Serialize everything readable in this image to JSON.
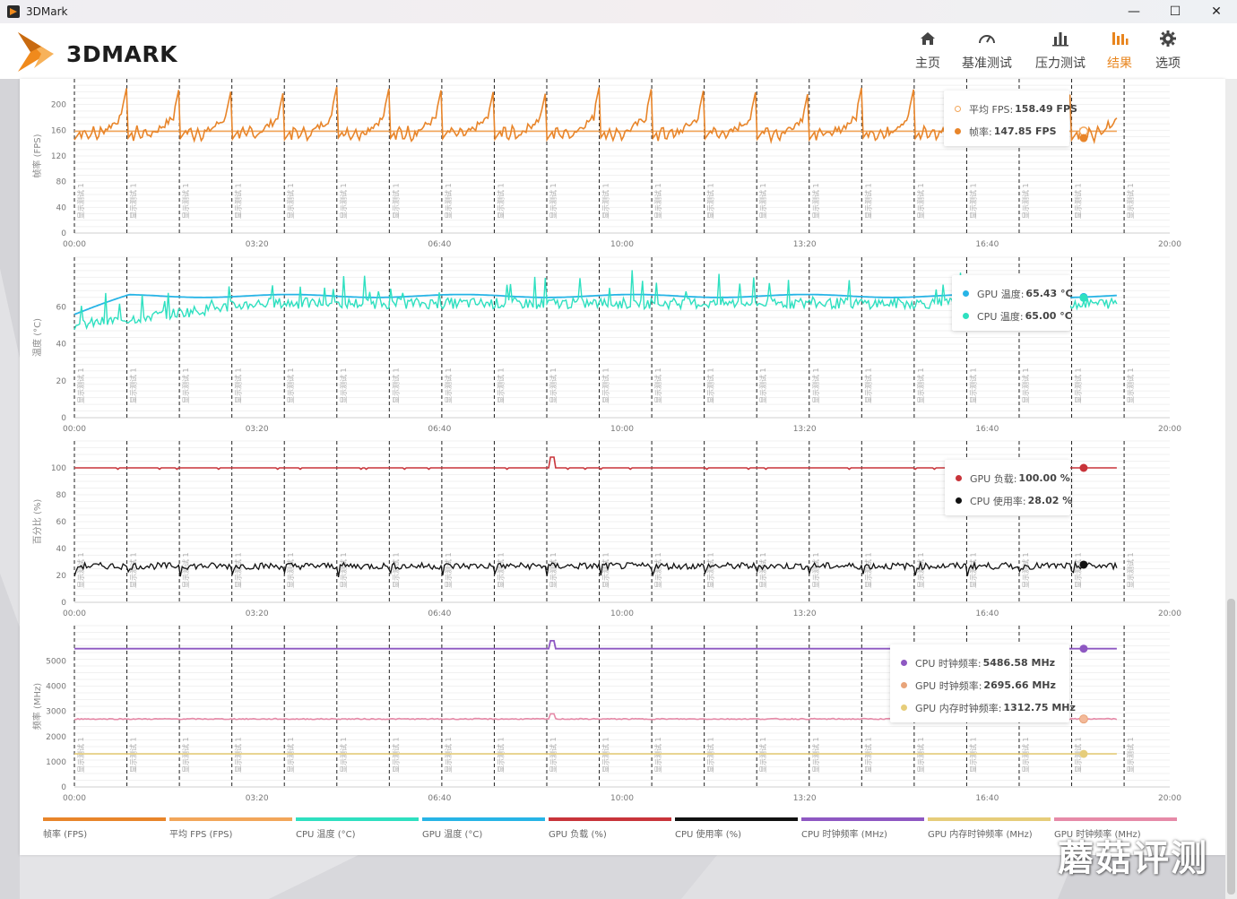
{
  "window": {
    "title": "3DMark",
    "controls": {
      "minimize": "—",
      "maximize": "☐",
      "close": "✕"
    }
  },
  "header": {
    "logo_text": "3DMARK",
    "nav": [
      {
        "label": "主页",
        "icon": "home-icon",
        "active": false
      },
      {
        "label": "基准测试",
        "icon": "gauge-icon",
        "active": false
      },
      {
        "label": "压力测试",
        "icon": "bar-chart-icon",
        "active": false
      },
      {
        "label": "结果",
        "icon": "results-icon",
        "active": true
      },
      {
        "label": "选项",
        "icon": "gear-icon",
        "active": false
      }
    ]
  },
  "colors": {
    "accent": "#e8851e",
    "fps": "#e8852a",
    "avg_fps": "#f2a65a",
    "cpu_temp": "#2ee0c0",
    "gpu_temp": "#27b4e6",
    "gpu_load": "#c8343a",
    "cpu_usage": "#111111",
    "cpu_clock": "#8e58c2",
    "gpu_mem_clock": "#e6cd7a",
    "gpu_clock": "#e68aa8"
  },
  "x_axis_ticks": [
    "00:00",
    "03:20",
    "06:40",
    "10:00",
    "13:20",
    "16:40",
    "20:00"
  ],
  "marker_label": "显示测试 1",
  "chart_data": [
    {
      "type": "line",
      "ylabel": "帧率 (FPS)",
      "yticks": [
        "0",
        "40",
        "80",
        "120",
        "160",
        "200"
      ],
      "ylim": [
        0,
        240
      ],
      "xlim_seconds": [
        0,
        1200
      ],
      "series": [
        {
          "name": "平均 FPS",
          "value": 158.49,
          "shape": "flat"
        },
        {
          "name": "帧率",
          "value": 147.85,
          "shape": "sawtooth",
          "min": 135,
          "max": 230,
          "period_seconds": 57.5
        }
      ],
      "legend": [
        {
          "label": "平均 FPS",
          "value": "158.49 FPS",
          "color": "#f2a65a",
          "hollow": true
        },
        {
          "label": "帧率",
          "value": "147.85 FPS",
          "color": "#e8852a",
          "hollow": false
        }
      ]
    },
    {
      "type": "line",
      "ylabel": "温度 (°C)",
      "yticks": [
        "0",
        "20",
        "40",
        "60"
      ],
      "ylim": [
        0,
        87
      ],
      "xlim_seconds": [
        0,
        1200
      ],
      "series": [
        {
          "name": "GPU 温度",
          "value": 65.43,
          "start": 56,
          "steady": 66
        },
        {
          "name": "CPU 温度",
          "value": 65.0,
          "start": 50,
          "steady": 62,
          "max": 80
        }
      ],
      "legend": [
        {
          "label": "GPU 温度",
          "value": "65.43 °C",
          "color": "#27b4e6",
          "hollow": false
        },
        {
          "label": "CPU 温度",
          "value": "65.00 °C",
          "color": "#2ee0c0",
          "hollow": false
        }
      ]
    },
    {
      "type": "line",
      "ylabel": "百分比 (%)",
      "yticks": [
        "0",
        "20",
        "40",
        "60",
        "80",
        "100"
      ],
      "ylim": [
        0,
        120
      ],
      "xlim_seconds": [
        0,
        1200
      ],
      "series": [
        {
          "name": "GPU 负载",
          "value": 100.0,
          "steady": 100
        },
        {
          "name": "CPU 使用率",
          "value": 28.02,
          "steady": 27
        }
      ],
      "legend": [
        {
          "label": "GPU 负载",
          "value": "100.00 %",
          "color": "#c8343a",
          "hollow": false
        },
        {
          "label": "CPU 使用率",
          "value": "28.02 %",
          "color": "#111111",
          "hollow": false
        }
      ]
    },
    {
      "type": "line",
      "ylabel": "频率 (MHz)",
      "yticks": [
        "0",
        "1000",
        "2000",
        "3000",
        "4000",
        "5000"
      ],
      "ylim": [
        0,
        6400
      ],
      "xlim_seconds": [
        0,
        1200
      ],
      "series": [
        {
          "name": "CPU 时钟频率",
          "value": 5486.58,
          "steady": 5487
        },
        {
          "name": "GPU 时钟频率",
          "value": 2695.66,
          "steady": 2696
        },
        {
          "name": "GPU 内存时钟频率",
          "value": 1312.75,
          "steady": 1313
        }
      ],
      "legend": [
        {
          "label": "CPU 时钟频率",
          "value": "5486.58 MHz",
          "color": "#8e58c2",
          "hollow": false
        },
        {
          "label": "GPU 时钟频率",
          "value": "2695.66 MHz",
          "color": "#e8a47a",
          "hollow": false
        },
        {
          "label": "GPU 内存时钟频率",
          "value": "1312.75 MHz",
          "color": "#e6cd7a",
          "hollow": false
        }
      ]
    }
  ],
  "bottom_legend": [
    {
      "label": "帧率 (FPS)",
      "color": "#e8852a"
    },
    {
      "label": "平均 FPS (FPS)",
      "color": "#f2a65a"
    },
    {
      "label": "CPU 温度 (°C)",
      "color": "#2ee0c0"
    },
    {
      "label": "GPU 温度 (°C)",
      "color": "#27b4e6"
    },
    {
      "label": "GPU 负载 (%)",
      "color": "#c8343a"
    },
    {
      "label": "CPU 使用率 (%)",
      "color": "#111111"
    },
    {
      "label": "CPU 时钟频率 (MHz)",
      "color": "#8e58c2"
    },
    {
      "label": "GPU 内存时钟频率 (MHz)",
      "color": "#e6cd7a"
    },
    {
      "label": "GPU 时钟频率 (MHz)",
      "color": "#e68aa8"
    }
  ],
  "watermark": "蘑菇评测"
}
